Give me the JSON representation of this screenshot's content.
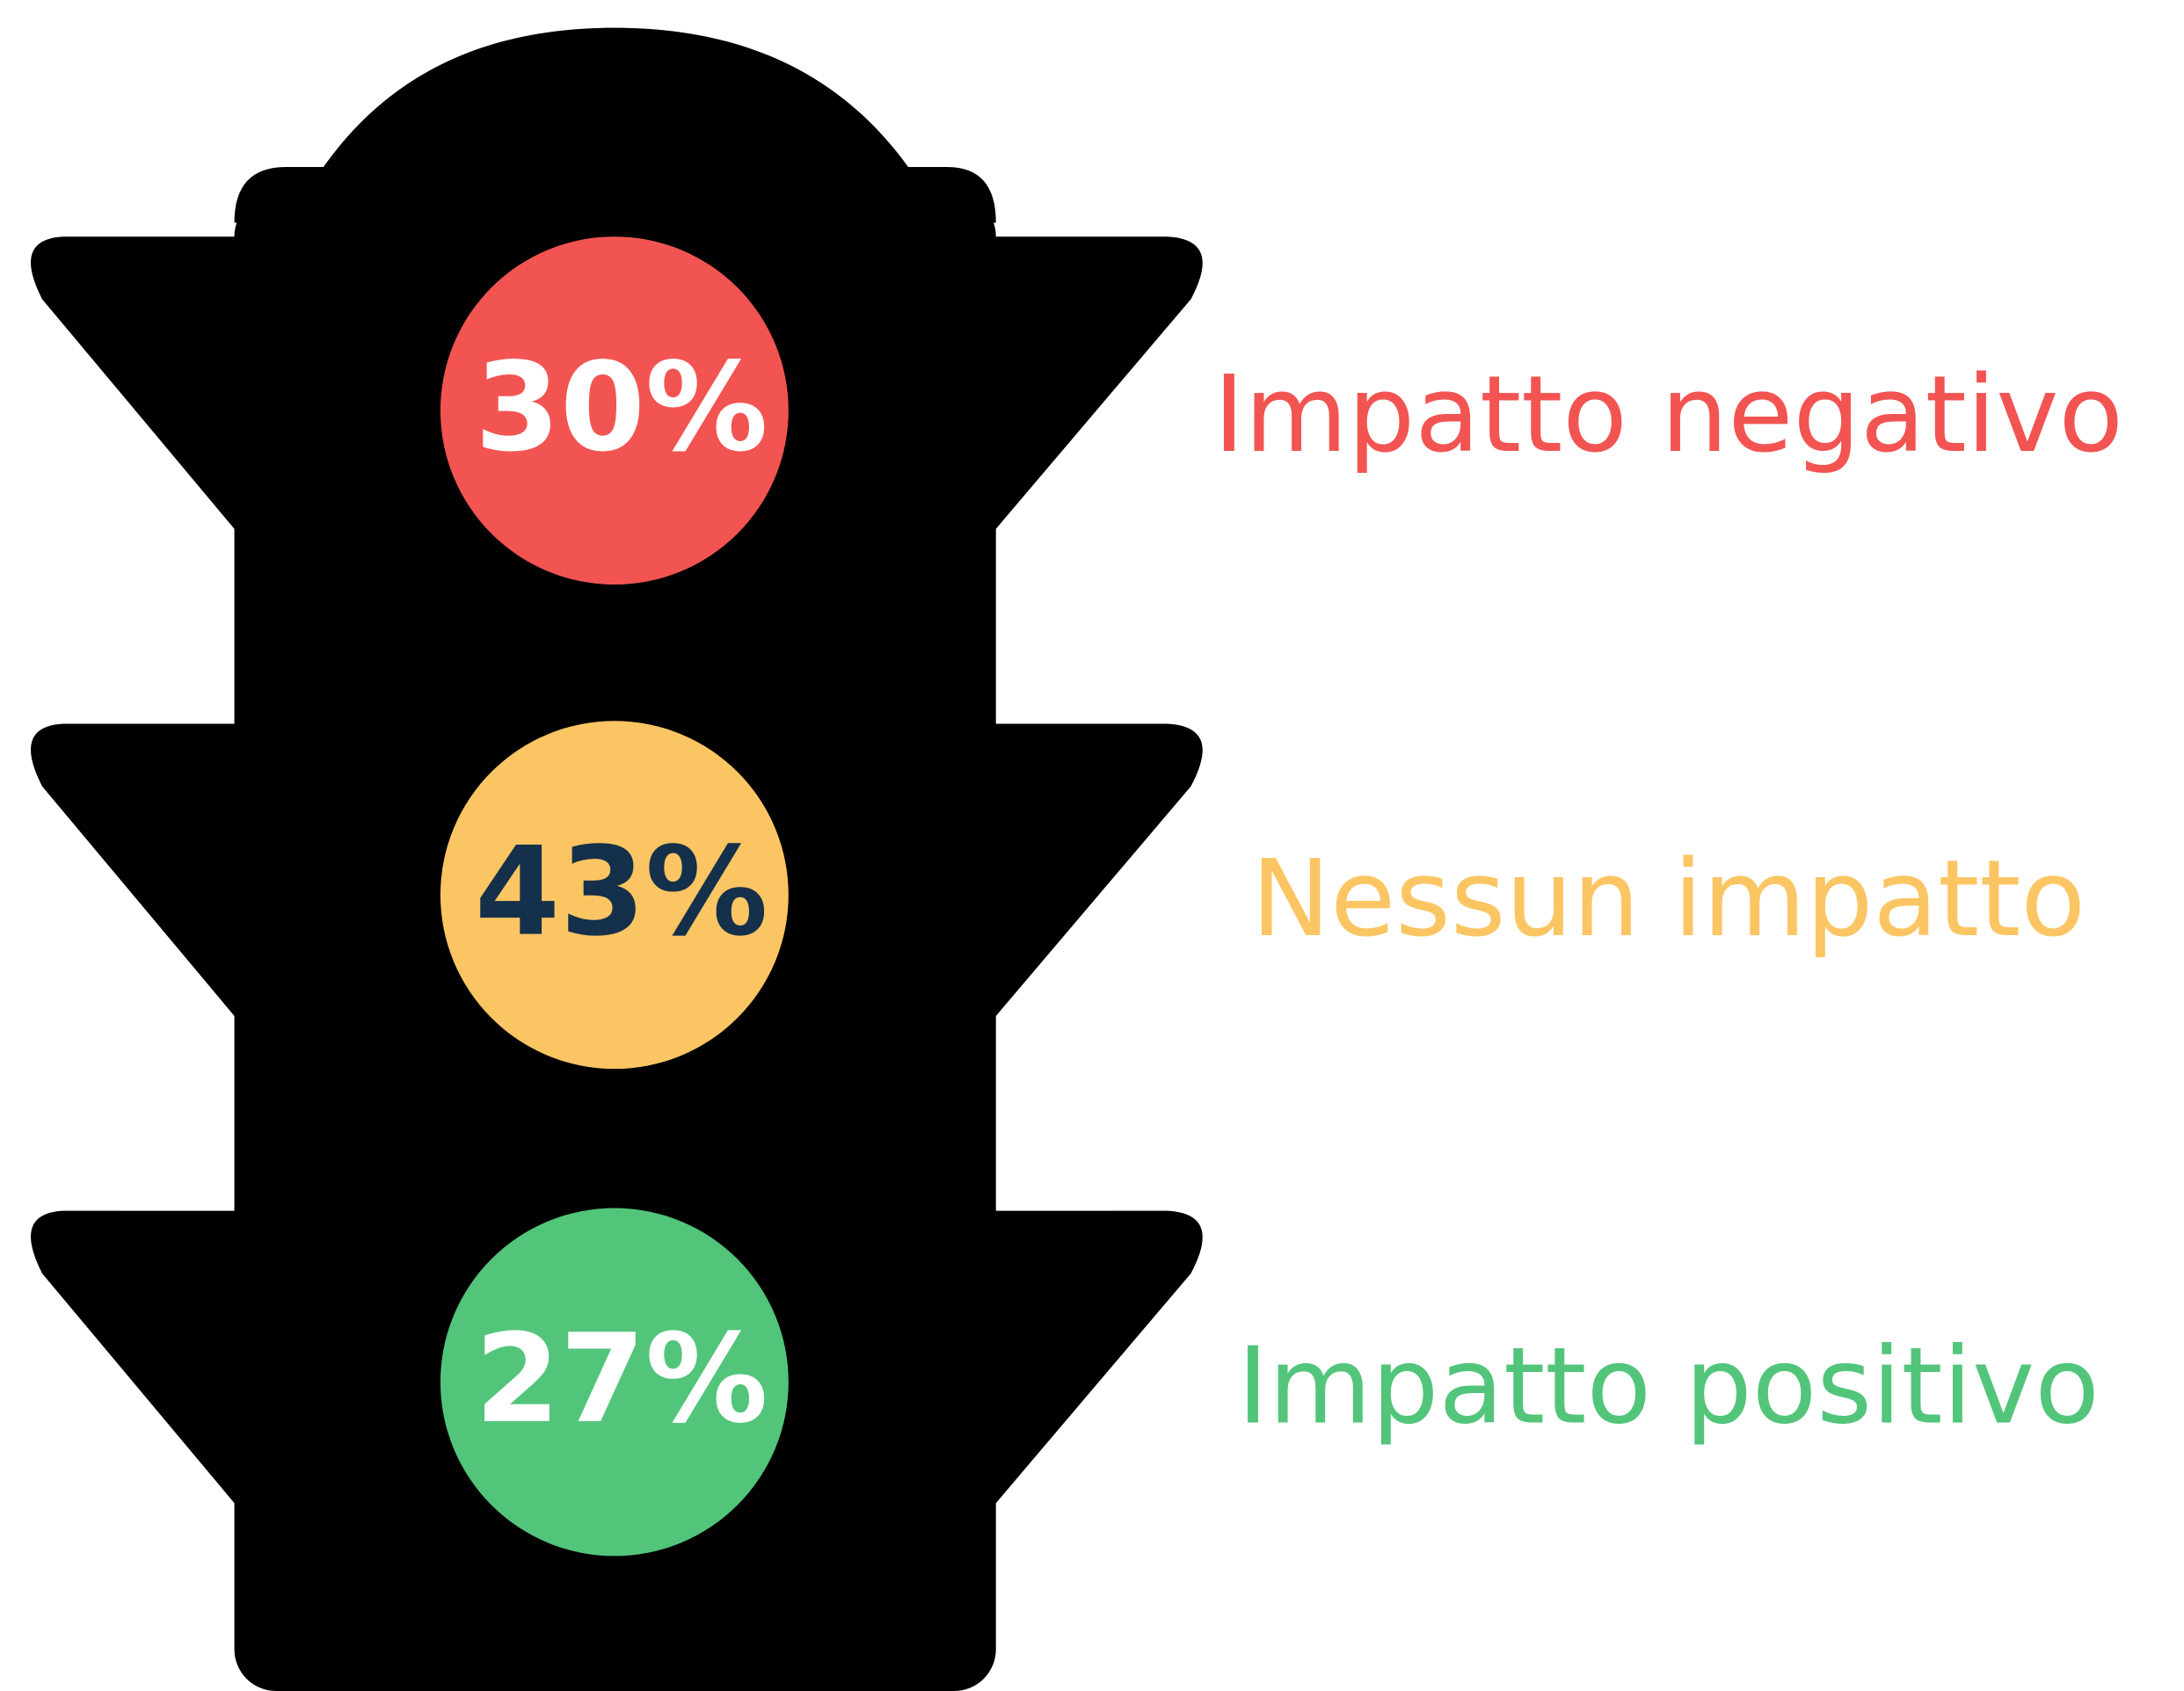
{
  "lights": [
    {
      "value_label": "30%",
      "label": "Impatto negativo",
      "color": "#f25452",
      "value_color": "#ffffff"
    },
    {
      "value_label": "43%",
      "label": "Nessun impatto",
      "color": "#fbc563",
      "value_color": "#14304a"
    },
    {
      "value_label": "27%",
      "label": "Impatto positivo",
      "color": "#52c57b",
      "value_color": "#ffffff"
    }
  ]
}
